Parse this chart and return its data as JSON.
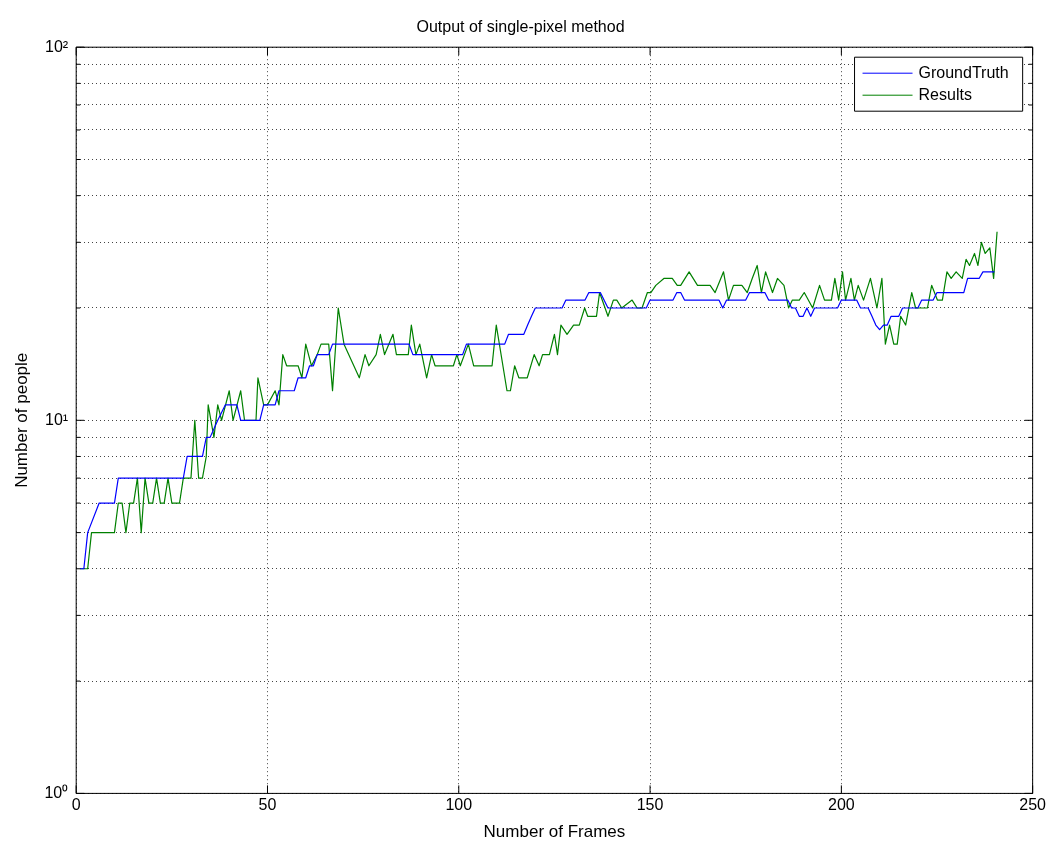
{
  "chart_data": {
    "type": "line",
    "title": "Output of single-pixel method",
    "xlabel": "Number of Frames",
    "ylabel": "Number of people",
    "xlim": [
      0,
      250
    ],
    "xticks": [
      0,
      50,
      100,
      150,
      200,
      250
    ],
    "ylim": [
      1,
      100
    ],
    "log": "y",
    "yticks": [
      {
        "value": 1,
        "label": "10⁰"
      },
      {
        "value": 2,
        "label": null
      },
      {
        "value": 3,
        "label": null
      },
      {
        "value": 4,
        "label": null
      },
      {
        "value": 5,
        "label": null
      },
      {
        "value": 6,
        "label": null
      },
      {
        "value": 7,
        "label": null
      },
      {
        "value": 8,
        "label": null
      },
      {
        "value": 9,
        "label": null
      },
      {
        "value": 10,
        "label": "10¹"
      },
      {
        "value": 20,
        "label": null
      },
      {
        "value": 30,
        "label": null
      },
      {
        "value": 40,
        "label": null
      },
      {
        "value": 50,
        "label": null
      },
      {
        "value": 60,
        "label": null
      },
      {
        "value": 70,
        "label": null
      },
      {
        "value": 80,
        "label": null
      },
      {
        "value": 90,
        "label": null
      },
      {
        "value": 100,
        "label": "10²"
      }
    ],
    "grid": true,
    "legend": "top right",
    "series": [
      {
        "name": "GroundTruth",
        "color": "#0000ff",
        "x": [
          1,
          2,
          3,
          6,
          10,
          11,
          28,
          29,
          33,
          34,
          35,
          37,
          39,
          42,
          43,
          48,
          49,
          52,
          53,
          57,
          58,
          60,
          61,
          62,
          63,
          66,
          67,
          87,
          88,
          101,
          102,
          112,
          113,
          117,
          118,
          119,
          120,
          127,
          128,
          133,
          134,
          137,
          139,
          149,
          150,
          156,
          157,
          158,
          159,
          168,
          169,
          170,
          175,
          176,
          180,
          181,
          186,
          187,
          188,
          189,
          190,
          191,
          192,
          193,
          199,
          200,
          204,
          205,
          207,
          208,
          209,
          210,
          211,
          212,
          213,
          215,
          216,
          220,
          221,
          224,
          225,
          232,
          233,
          236,
          237,
          240
        ],
        "values": [
          4,
          4,
          5,
          6,
          6,
          7,
          7,
          8,
          8,
          9,
          9,
          10,
          11,
          11,
          10,
          10,
          11,
          11,
          12,
          12,
          13,
          13,
          14,
          14,
          15,
          15,
          16,
          16,
          15,
          15,
          16,
          16,
          17,
          17,
          18,
          19,
          20,
          20,
          21,
          21,
          22,
          22,
          20,
          20,
          21,
          21,
          22,
          22,
          21,
          21,
          20,
          21,
          21,
          22,
          22,
          21,
          21,
          20,
          20,
          19,
          19,
          20,
          19,
          20,
          20,
          21,
          21,
          20,
          20,
          19,
          18,
          17.5,
          18,
          18,
          19,
          19,
          20,
          20,
          21,
          21,
          22,
          22,
          24,
          24,
          25,
          25
        ]
      },
      {
        "name": "Results",
        "color": "#008000",
        "x": [
          1,
          3,
          4,
          10,
          11,
          12,
          13,
          14,
          15,
          16,
          17,
          18,
          19,
          20,
          21,
          22,
          23,
          24,
          25,
          27,
          28,
          30,
          31,
          32,
          33,
          34,
          34.5,
          36,
          37,
          38,
          40,
          41,
          43,
          44,
          47,
          47.5,
          49,
          50,
          52,
          53,
          54,
          55,
          58,
          59,
          60,
          61.5,
          63,
          64,
          66,
          67,
          68.5,
          70,
          74,
          75.5,
          76.5,
          78.4,
          79.5,
          80.6,
          82.8,
          83.7,
          86.8,
          87.6,
          88.8,
          89.8,
          91.6,
          92.9,
          93.8,
          98.6,
          99.5,
          100.4,
          102.5,
          103.9,
          108.7,
          109.8,
          112.6,
          113.5,
          114.6,
          115.7,
          117.9,
          119.7,
          121,
          121.9,
          123.7,
          125,
          125.8,
          126.7,
          128.3,
          130,
          131.5,
          132.9,
          133.7,
          136,
          136.8,
          139,
          140.4,
          141.3,
          142.6,
          145.3,
          146.6,
          147.9,
          149.3,
          150.2,
          151.5,
          153.6,
          155.8,
          157.1,
          158,
          160.2,
          162.4,
          164,
          165.7,
          167,
          169.2,
          170.5,
          171.8,
          174,
          175.4,
          176.7,
          178,
          179.1,
          180.2,
          182,
          183.3,
          185,
          186.2,
          187.2,
          189,
          190.3,
          192.5,
          194.3,
          195.6,
          197.4,
          198.3,
          199.3,
          200.3,
          201.1,
          202.5,
          203.4,
          204.4,
          205.8,
          207.6,
          209.3,
          210.6,
          211.5,
          212.6,
          213.7,
          214.6,
          215.5,
          216.8,
          218.4,
          219.4,
          222.5,
          223.6,
          225.1,
          226.4,
          227.6,
          228.7,
          230,
          231.6,
          232.6,
          233.5,
          234.8,
          235.7,
          236.6,
          237.6,
          238.8,
          239.8,
          240.7
        ],
        "values": [
          4,
          4,
          5,
          5,
          6,
          6,
          5,
          6,
          6,
          7,
          5,
          7,
          6,
          6,
          7,
          6,
          6,
          7,
          6,
          6,
          7,
          7,
          10,
          7,
          7,
          8,
          11,
          9,
          11,
          10,
          12,
          10,
          12,
          10,
          10,
          13,
          11,
          11,
          12,
          11,
          15,
          14,
          14,
          13,
          16,
          14,
          15,
          16,
          16,
          12,
          20,
          16,
          13,
          15,
          14,
          15,
          17,
          15,
          17,
          15,
          15,
          18,
          15,
          16,
          13,
          15,
          14,
          14,
          15,
          14,
          16,
          14,
          14,
          18,
          12,
          12,
          14,
          13,
          13,
          15,
          14,
          15,
          15,
          17,
          15,
          18,
          17,
          18,
          18,
          20,
          19,
          19,
          22,
          19,
          21,
          21,
          20,
          21,
          20,
          20,
          22,
          22,
          23,
          24,
          24,
          23,
          23,
          25,
          23,
          23,
          23,
          22,
          25,
          21,
          23,
          23,
          22,
          24,
          26,
          22,
          25,
          22,
          24,
          23,
          20,
          21,
          21,
          22,
          20,
          23,
          21,
          21,
          24,
          21,
          25,
          21,
          24,
          21,
          23,
          21,
          24,
          20,
          24,
          16,
          18,
          16,
          16,
          19,
          18,
          22,
          20,
          20,
          23,
          21,
          21,
          25,
          24,
          25,
          24,
          27,
          26,
          28,
          26,
          30,
          28,
          29,
          24,
          32
        ]
      }
    ]
  }
}
